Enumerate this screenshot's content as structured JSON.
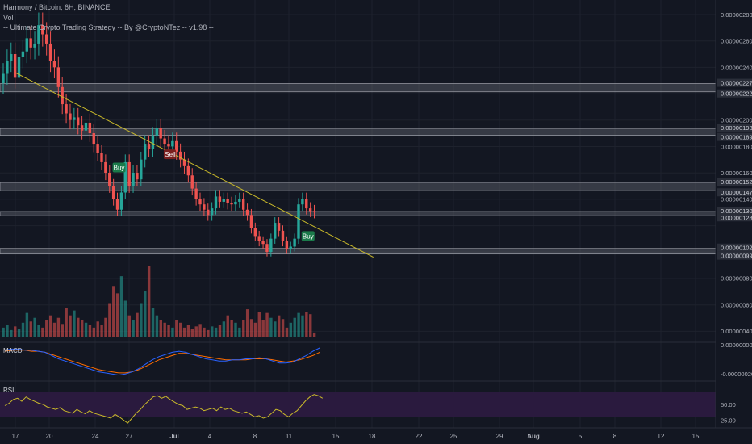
{
  "header": {
    "symbol_line": "Harmony / Bitcoin, 6H, BINANCE",
    "vol_label": "Vol",
    "strategy_line": "-- Ultimate Crypto Trading Strategy -- By @CryptoNTez -- v1.98 --"
  },
  "panes": {
    "macd_label": "MACD",
    "rsi_label": "RSI"
  },
  "colors": {
    "background": "#131722",
    "up": "#26a69a",
    "down": "#ef5350",
    "trendline": "#c9b92a",
    "zone": "#787b86",
    "macd": "#2962ff",
    "signal": "#ff6d00",
    "rsi": "#c9b92a",
    "rsi_band": "#2a1a3e"
  },
  "chart_data": {
    "type": "candlestick",
    "title": "Harmony / Bitcoin, 6H, BINANCE",
    "ylim": [
      3.2e-07,
      2.88e-06
    ],
    "price_ticks": [
      "0.00000280",
      "0.00000260",
      "0.00000240",
      "0.00000200",
      "0.00000180",
      "0.00000160",
      "0.00000140",
      "0.00000080",
      "0.00000060",
      "0.00000040"
    ],
    "level_labels": [
      "0.00000227",
      "0.00000222",
      "0.00000193",
      "0.00000189",
      "0.00000152",
      "0.00000147",
      "0.00000130",
      "0.00000128",
      "0.00000102",
      "0.00000099"
    ],
    "zones": [
      [
        2.22e-06,
        2.27e-06
      ],
      [
        1.89e-06,
        1.93e-06
      ],
      [
        1.47e-06,
        1.52e-06
      ],
      [
        1.28e-06,
        1.3e-06
      ],
      [
        9.9e-07,
        1.02e-06
      ]
    ],
    "x_ticks": [
      "17",
      "20",
      "24",
      "27",
      "Jul",
      "4",
      "8",
      "11",
      "15",
      "18",
      "22",
      "25",
      "29",
      "Aug",
      "5",
      "8",
      "12",
      "15"
    ],
    "close": [
      2.35e-06,
      2.45e-06,
      2.5e-06,
      2.32e-06,
      2.48e-06,
      2.52e-06,
      2.62e-06,
      2.55e-06,
      2.58e-06,
      2.72e-06,
      2.65e-06,
      2.58e-06,
      2.45e-06,
      2.4e-06,
      2.25e-06,
      2.12e-06,
      2.05e-06,
      2e-06,
      2.02e-06,
      1.96e-06,
      1.92e-06,
      1.98e-06,
      1.9e-06,
      1.82e-06,
      1.75e-06,
      1.68e-06,
      1.6e-06,
      1.5e-06,
      1.4e-06,
      1.32e-06,
      1.45e-06,
      1.68e-06,
      1.5e-06,
      1.6e-06,
      1.55e-06,
      1.7e-06,
      1.82e-06,
      1.78e-06,
      1.88e-06,
      1.94e-06,
      1.86e-06,
      1.82e-06,
      1.8e-06,
      1.84e-06,
      1.76e-06,
      1.7e-06,
      1.65e-06,
      1.58e-06,
      1.48e-06,
      1.4e-06,
      1.36e-06,
      1.32e-06,
      1.28e-06,
      1.33e-06,
      1.42e-06,
      1.38e-06,
      1.4e-06,
      1.37e-06,
      1.36e-06,
      1.38e-06,
      1.4e-06,
      1.32e-06,
      1.28e-06,
      1.18e-06,
      1.12e-06,
      1.08e-06,
      1.06e-06,
      1e-06,
      1.1e-06,
      1.22e-06,
      1.16e-06,
      1.08e-06,
      1.02e-06,
      1.04e-06,
      1.1e-06,
      1.36e-06,
      1.4e-06,
      1.33e-06,
      1.31e-06,
      1.3e-06
    ],
    "volume": [
      4e-07,
      4.2e-07,
      3.8e-07,
      4.1e-07,
      3.9e-07,
      4.4e-07,
      5.2e-07,
      4.5e-07,
      4.8e-07,
      4.2e-07,
      4e-07,
      4.6e-07,
      5e-07,
      4.4e-07,
      4.8e-07,
      4.3e-07,
      5.6e-07,
      5e-07,
      5.4e-07,
      4.8e-07,
      4.6e-07,
      4.4e-07,
      4.2e-07,
      4e-07,
      4.5e-07,
      4.2e-07,
      4.8e-07,
      6e-07,
      7.4e-07,
      6.8e-07,
      8.2e-07,
      6.2e-07,
      5e-07,
      4.6e-07,
      5.2e-07,
      6e-07,
      7e-07,
      9e-07,
      5.6e-07,
      5e-07,
      4.6e-07,
      4.4e-07,
      4.2e-07,
      4e-07,
      4.6e-07,
      4.4e-07,
      4e-07,
      4.2e-07,
      3.9e-07,
      4.1e-07,
      4.3e-07,
      4e-07,
      3.8e-07,
      4.1e-07,
      4e-07,
      4.2e-07,
      4.5e-07,
      5e-07,
      4.6e-07,
      4.4e-07,
      4e-07,
      4.6e-07,
      5.5e-07,
      4.7e-07,
      4.4e-07,
      5.3e-07,
      4.6e-07,
      5.2e-07,
      4.8e-07,
      4.5e-07,
      5e-07,
      4.7e-07,
      4e-07,
      4.4e-07,
      4.8e-07,
      5.2e-07,
      5e-07,
      5.3e-07,
      5.1e-07,
      3.6e-07
    ],
    "markers": [
      {
        "label": "Buy",
        "index": 29,
        "price": 1.64e-06
      },
      {
        "label": "Sell",
        "index": 42,
        "price": 1.74e-06
      },
      {
        "label": "Buy",
        "index": 77,
        "price": 1.12e-06
      }
    ],
    "trendline": {
      "start": [
        3,
        2.36e-06
      ],
      "end": [
        94,
        9.6e-07
      ]
    },
    "macd_ticks": [
      "0.00000000",
      "-0.00000020"
    ],
    "macd_range": [
      -2.5e-07,
      7e-08
    ],
    "macd": [
      2e-08,
      3e-08,
      3e-08,
      2e-08,
      2e-08,
      1e-08,
      0.0,
      -3e-08,
      -6e-08,
      -8e-08,
      -1e-07,
      -1.2e-07,
      -1.4e-07,
      -1.6e-07,
      -1.8e-07,
      -1.9e-07,
      -2e-07,
      -2.1e-07,
      -2e-07,
      -1.8e-07,
      -1.5e-07,
      -1.1e-07,
      -7e-08,
      -4e-08,
      -2e-08,
      0.0,
      1e-08,
      0.0,
      -2e-08,
      -4e-08,
      -6e-08,
      -7e-08,
      -8e-08,
      -8e-08,
      -7e-08,
      -7e-08,
      -6e-08,
      -6e-08,
      -5e-08,
      -6e-08,
      -8e-08,
      -1e-07,
      -1e-07,
      -9e-08,
      -6e-08,
      -3e-08,
      1e-08,
      4e-08
    ],
    "signal": [
      1e-08,
      2e-08,
      2e-08,
      2e-08,
      1e-08,
      1e-08,
      0.0,
      -2e-08,
      -4e-08,
      -6e-08,
      -8e-08,
      -1e-07,
      -1.2e-07,
      -1.4e-07,
      -1.6e-07,
      -1.7e-07,
      -1.8e-07,
      -1.9e-07,
      -1.9e-07,
      -1.8e-07,
      -1.6e-07,
      -1.3e-07,
      -1e-07,
      -7e-08,
      -5e-08,
      -3e-08,
      -1e-08,
      -1e-08,
      -2e-08,
      -3e-08,
      -4e-08,
      -5e-08,
      -6e-08,
      -7e-08,
      -7e-08,
      -7e-08,
      -7e-08,
      -6e-08,
      -6e-08,
      -6e-08,
      -7e-08,
      -8e-08,
      -9e-08,
      -8e-08,
      -7e-08,
      -5e-08,
      -3e-08,
      0.0
    ],
    "rsi_ticks": [
      "50.00",
      "25.00"
    ],
    "rsi_bands": [
      70,
      30
    ],
    "rsi_range": [
      15,
      85
    ],
    "rsi": [
      48,
      52,
      58,
      60,
      55,
      62,
      58,
      55,
      52,
      50,
      46,
      44,
      42,
      45,
      40,
      38,
      36,
      42,
      38,
      35,
      40,
      36,
      34,
      32,
      30,
      28,
      34,
      30,
      25,
      20,
      28,
      36,
      42,
      50,
      56,
      62,
      64,
      60,
      63,
      58,
      54,
      50,
      48,
      42,
      44,
      46,
      44,
      40,
      42,
      44,
      40,
      46,
      42,
      44,
      40,
      38,
      36,
      38,
      34,
      30,
      32,
      28,
      30,
      36,
      42,
      40,
      34,
      30,
      36,
      40,
      48,
      56,
      62,
      66,
      64,
      60
    ]
  }
}
